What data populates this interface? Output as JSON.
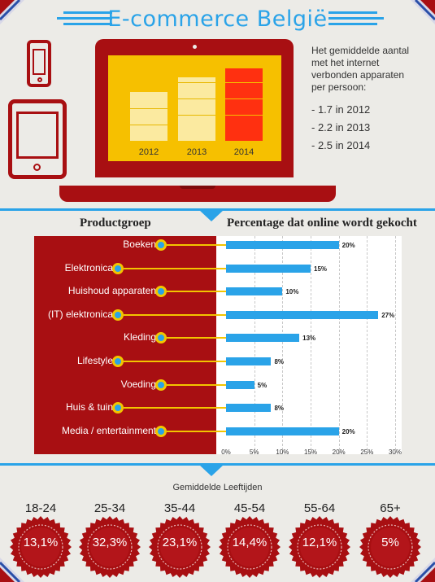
{
  "header": {
    "title": "E-commerce België"
  },
  "laptop_chart": {
    "years": [
      "2012",
      "2013",
      "2014"
    ]
  },
  "devices_text": {
    "intro": "Het gemiddelde aantal met het internet verbonden apparaten per persoon:",
    "intro_lines": [
      "Het gemiddelde aantal",
      "met het internet",
      "verbonden apparaten",
      "per persoon:"
    ],
    "stats": [
      "- 1.7 in 2012",
      "- 2.2 in 2013",
      "- 2.5 in 2014"
    ]
  },
  "headings": {
    "product": "Productgroep",
    "percentage": "Percentage dat online wordt gekocht"
  },
  "chart_data": {
    "type": "bar",
    "orientation": "horizontal",
    "categories": [
      "Boeken",
      "Elektronica",
      "Huishoud apparaten",
      "(IT) elektronica",
      "Kleding",
      "Lifestyle",
      "Voeding",
      "Huis & tuin",
      "Media / entertainment"
    ],
    "values": [
      20,
      15,
      10,
      27,
      13,
      8,
      5,
      8,
      20
    ],
    "value_labels": [
      "20%",
      "15%",
      "10%",
      "27%",
      "13%",
      "8%",
      "5%",
      "8%",
      "20%"
    ],
    "xticks": [
      "0%",
      "5%",
      "10%",
      "15%",
      "20%",
      "25%",
      "30%"
    ],
    "xlim": [
      0,
      30
    ],
    "grid": true,
    "colors": {
      "bar": "#2aa3e8",
      "panel": "#a80f12",
      "connector": "#f2c500"
    }
  },
  "ages": {
    "title": "Gemiddelde Leeftijden",
    "groups": [
      {
        "label": "18-24",
        "value": "13,1%"
      },
      {
        "label": "25-34",
        "value": "32,3%"
      },
      {
        "label": "35-44",
        "value": "23,1%"
      },
      {
        "label": "45-54",
        "value": "14,4%"
      },
      {
        "label": "55-64",
        "value": "12,1%"
      },
      {
        "label": "65+",
        "value": "5%"
      }
    ]
  },
  "colors": {
    "accent": "#2aa3e8",
    "red": "#a80f12",
    "yellow": "#f6c000",
    "bg": "#ecebe7"
  }
}
